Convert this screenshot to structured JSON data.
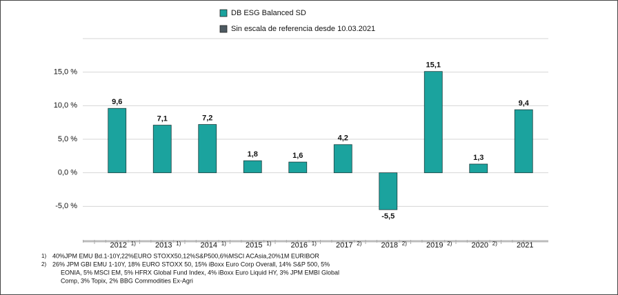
{
  "chart_data": {
    "type": "bar",
    "categories": [
      "2012",
      "2013",
      "2014",
      "2015",
      "2016",
      "2017",
      "2018",
      "2019",
      "2020",
      "2021"
    ],
    "category_notes": [
      "1)",
      "1)",
      "1)",
      "1)",
      "1)",
      "2)",
      "2)",
      "2)",
      "2)",
      null
    ],
    "series": [
      {
        "name": "DB ESG Balanced  SD",
        "color": "#1ba39e",
        "values": [
          9.6,
          7.1,
          7.2,
          1.8,
          1.6,
          4.2,
          -5.5,
          15.1,
          1.3,
          9.4
        ],
        "value_labels": [
          "9,6",
          "7,1",
          "7,2",
          "1,8",
          "1,6",
          "4,2",
          "-5,5",
          "15,1",
          "1,3",
          "9,4"
        ]
      },
      {
        "name": "Sin escala de referencia desde 10.03.2021",
        "color": "#4d5a62",
        "values": [
          null,
          null,
          null,
          null,
          null,
          null,
          null,
          null,
          null,
          null
        ]
      }
    ],
    "ylim": [
      -10,
      20
    ],
    "yticks": [
      {
        "value": -5,
        "label": "-5,0 %"
      },
      {
        "value": 0,
        "label": "0,0 %"
      },
      {
        "value": 5,
        "label": "5,0 %"
      },
      {
        "value": 10,
        "label": "10,0 %"
      },
      {
        "value": 15,
        "label": "15,0 %"
      }
    ],
    "grid": true,
    "footnotes": [
      {
        "marker": "1)",
        "text": [
          "40%JPM EMU Bd.1-10Y,22%EURO STOXX50,12%S&P500,6%MSCI ACAsia,20%1M EURIBOR"
        ]
      },
      {
        "marker": "2)",
        "text": [
          "26% JPM GBI EMU 1-10Y, 18% EURO STOXX 50, 15% iBoxx Euro Corp Overall, 14% S&P 500, 5%",
          "EONIA, 5% MSCI EM, 5% HFRX Global Fund Index, 4% iBoxx Euro Liquid HY, 3% JPM EMBI Global",
          "Comp, 3% Topix, 2% BBG Commodities Ex-Agri"
        ]
      }
    ]
  }
}
